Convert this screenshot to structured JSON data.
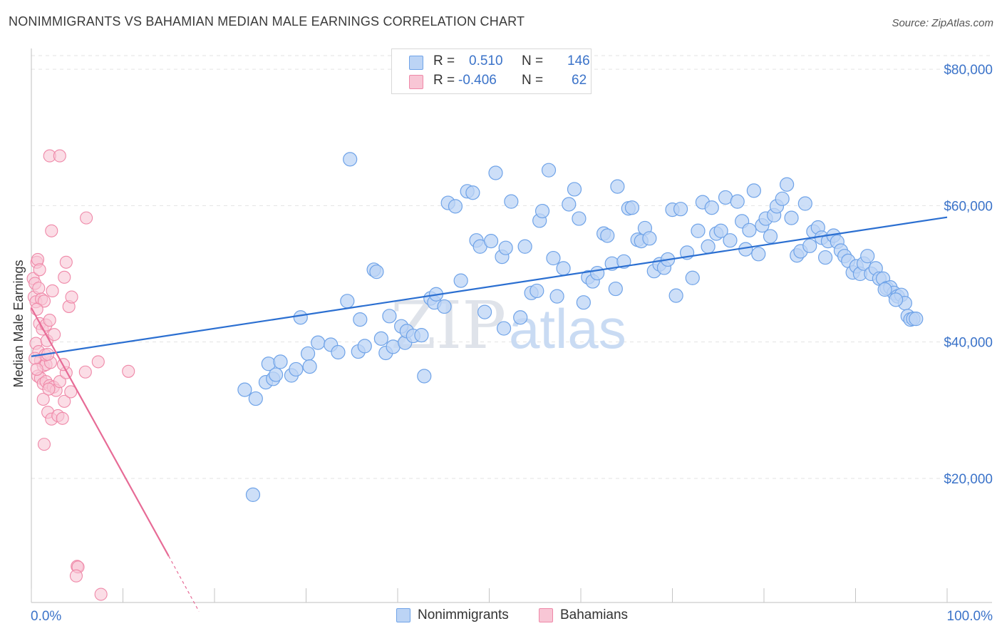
{
  "title": "NONIMMIGRANTS VS BAHAMIAN MEDIAN MALE EARNINGS CORRELATION CHART",
  "source": "Source: ZipAtlas.com",
  "watermark": {
    "zip": "ZIP",
    "atlas": "atlas"
  },
  "colors": {
    "blue": "#6fa3e8",
    "blue_fill": "#bcd4f5",
    "blue_line": "#2b6fd1",
    "pink": "#ef88a8",
    "pink_fill": "#f8c6d5",
    "pink_line": "#e76b96",
    "axis_value": "#3b73c9",
    "grid": "#e3e3e3"
  },
  "legend": {
    "rows": [
      {
        "r_label": "R =",
        "r_value": "0.510",
        "n_label": "N =",
        "n_value": "146"
      },
      {
        "r_label": "R =",
        "r_value": "-0.406",
        "n_label": "N =",
        "n_value": "62"
      }
    ]
  },
  "bottom_legend": {
    "series1": "Nonimmigrants",
    "series2": "Bahamians"
  },
  "chart_data": {
    "type": "scatter",
    "title": "NONIMMIGRANTS VS BAHAMIAN MEDIAN MALE EARNINGS CORRELATION CHART",
    "xlabel": "",
    "ylabel": "Median Male Earnings",
    "x_tick_labels": [
      "0.0%",
      "100.0%"
    ],
    "y_tick_labels": [
      "$20,000",
      "$40,000",
      "$60,000",
      "$80,000"
    ],
    "y_ticks": [
      20000,
      40000,
      60000,
      80000
    ],
    "xlim": [
      0,
      100
    ],
    "ylim": [
      1800,
      82000
    ],
    "grid": true,
    "legend_position": "top-center",
    "series": [
      {
        "name": "Nonimmigrants",
        "color": "#6fa3e8",
        "trend": {
          "x": [
            0,
            100
          ],
          "y": [
            37900,
            58300
          ]
        },
        "points": [
          [
            23.3,
            33000
          ],
          [
            24.2,
            17600
          ],
          [
            24.5,
            31700
          ],
          [
            25.6,
            34100
          ],
          [
            25.9,
            36800
          ],
          [
            26.4,
            34600
          ],
          [
            26.7,
            35200
          ],
          [
            27.2,
            37100
          ],
          [
            28.4,
            35100
          ],
          [
            28.9,
            36000
          ],
          [
            29.4,
            43600
          ],
          [
            30.2,
            38300
          ],
          [
            30.4,
            36400
          ],
          [
            31.3,
            39900
          ],
          [
            32.7,
            39600
          ],
          [
            33.5,
            38500
          ],
          [
            34.5,
            46000
          ],
          [
            34.8,
            66800
          ],
          [
            35.7,
            38600
          ],
          [
            35.9,
            43300
          ],
          [
            36.4,
            39400
          ],
          [
            37.4,
            50600
          ],
          [
            37.7,
            50300
          ],
          [
            38.2,
            40500
          ],
          [
            38.7,
            38400
          ],
          [
            39.1,
            43800
          ],
          [
            39.5,
            39300
          ],
          [
            40.4,
            42300
          ],
          [
            40.8,
            39900
          ],
          [
            41.0,
            41600
          ],
          [
            41.7,
            40900
          ],
          [
            42.6,
            41000
          ],
          [
            42.9,
            35000
          ],
          [
            43.6,
            46400
          ],
          [
            44.0,
            45800
          ],
          [
            44.2,
            47000
          ],
          [
            45.1,
            45200
          ],
          [
            45.5,
            60400
          ],
          [
            46.3,
            59900
          ],
          [
            46.9,
            49000
          ],
          [
            47.6,
            62100
          ],
          [
            48.2,
            61900
          ],
          [
            48.6,
            54900
          ],
          [
            49.0,
            54000
          ],
          [
            49.5,
            44400
          ],
          [
            50.2,
            54800
          ],
          [
            50.7,
            64800
          ],
          [
            51.4,
            52500
          ],
          [
            51.6,
            42000
          ],
          [
            51.8,
            53800
          ],
          [
            52.4,
            60600
          ],
          [
            53.4,
            43600
          ],
          [
            53.9,
            54000
          ],
          [
            54.6,
            47200
          ],
          [
            55.2,
            47500
          ],
          [
            55.5,
            57800
          ],
          [
            55.8,
            59200
          ],
          [
            56.5,
            65200
          ],
          [
            57.0,
            52300
          ],
          [
            57.4,
            46700
          ],
          [
            58.1,
            50800
          ],
          [
            58.7,
            60200
          ],
          [
            59.3,
            62400
          ],
          [
            59.8,
            58100
          ],
          [
            60.3,
            45800
          ],
          [
            60.8,
            49500
          ],
          [
            61.3,
            48900
          ],
          [
            61.8,
            50100
          ],
          [
            62.5,
            55900
          ],
          [
            62.9,
            55600
          ],
          [
            63.4,
            51500
          ],
          [
            63.8,
            47800
          ],
          [
            64.0,
            62800
          ],
          [
            64.7,
            51800
          ],
          [
            65.2,
            59600
          ],
          [
            65.6,
            59700
          ],
          [
            66.2,
            55000
          ],
          [
            66.6,
            54800
          ],
          [
            67.0,
            56700
          ],
          [
            67.5,
            55200
          ],
          [
            68.0,
            50400
          ],
          [
            68.6,
            51400
          ],
          [
            69.1,
            50900
          ],
          [
            69.5,
            52100
          ],
          [
            70.0,
            59400
          ],
          [
            70.4,
            46800
          ],
          [
            70.9,
            59500
          ],
          [
            71.6,
            53100
          ],
          [
            72.2,
            49400
          ],
          [
            72.8,
            56300
          ],
          [
            73.3,
            60500
          ],
          [
            73.9,
            54000
          ],
          [
            74.3,
            59700
          ],
          [
            74.8,
            55900
          ],
          [
            75.3,
            56300
          ],
          [
            75.8,
            61200
          ],
          [
            76.3,
            54900
          ],
          [
            77.1,
            60600
          ],
          [
            77.6,
            57700
          ],
          [
            78.0,
            53600
          ],
          [
            78.4,
            56400
          ],
          [
            78.9,
            62200
          ],
          [
            79.4,
            52900
          ],
          [
            79.8,
            57100
          ],
          [
            80.2,
            58100
          ],
          [
            80.7,
            55500
          ],
          [
            81.1,
            58600
          ],
          [
            81.4,
            59900
          ],
          [
            82.0,
            61000
          ],
          [
            82.5,
            63100
          ],
          [
            83.0,
            58200
          ],
          [
            83.6,
            52700
          ],
          [
            84.0,
            53300
          ],
          [
            84.5,
            60300
          ],
          [
            85.0,
            54100
          ],
          [
            85.4,
            56200
          ],
          [
            85.9,
            56800
          ],
          [
            86.3,
            55300
          ],
          [
            86.7,
            52400
          ],
          [
            87.0,
            54800
          ],
          [
            87.6,
            55600
          ],
          [
            88.0,
            54700
          ],
          [
            88.4,
            53400
          ],
          [
            88.8,
            52600
          ],
          [
            89.2,
            51900
          ],
          [
            89.7,
            50200
          ],
          [
            90.1,
            51100
          ],
          [
            90.5,
            50000
          ],
          [
            90.9,
            51500
          ],
          [
            91.3,
            52600
          ],
          [
            91.7,
            50000
          ],
          [
            92.2,
            50800
          ],
          [
            92.6,
            49300
          ],
          [
            93.0,
            49300
          ],
          [
            93.4,
            47900
          ],
          [
            93.8,
            48000
          ],
          [
            94.2,
            47200
          ],
          [
            94.6,
            46700
          ],
          [
            95.0,
            46900
          ],
          [
            95.4,
            45700
          ],
          [
            95.7,
            43800
          ],
          [
            96.0,
            43300
          ],
          [
            96.3,
            43400
          ],
          [
            96.6,
            43400
          ],
          [
            93.2,
            47700
          ],
          [
            94.4,
            46200
          ]
        ]
      },
      {
        "name": "Bahamians",
        "color": "#ef88a8",
        "trend": {
          "x": [
            0,
            15.0
          ],
          "y": [
            45000,
            8600
          ]
        },
        "trend_dashed": {
          "x": [
            15.0,
            18.3
          ],
          "y": [
            8600,
            500
          ]
        },
        "points": [
          [
            0.2,
            49300
          ],
          [
            0.4,
            48600
          ],
          [
            0.6,
            51700
          ],
          [
            0.7,
            52100
          ],
          [
            0.9,
            50600
          ],
          [
            0.3,
            46600
          ],
          [
            0.5,
            45900
          ],
          [
            0.8,
            47900
          ],
          [
            1.1,
            46300
          ],
          [
            1.4,
            46000
          ],
          [
            0.6,
            44800
          ],
          [
            0.9,
            42700
          ],
          [
            1.2,
            41900
          ],
          [
            1.6,
            42500
          ],
          [
            2.0,
            43200
          ],
          [
            0.5,
            39800
          ],
          [
            0.8,
            38600
          ],
          [
            1.0,
            37300
          ],
          [
            1.3,
            36500
          ],
          [
            1.6,
            36700
          ],
          [
            2.1,
            37000
          ],
          [
            0.7,
            35000
          ],
          [
            1.0,
            34700
          ],
          [
            1.3,
            33900
          ],
          [
            1.6,
            34200
          ],
          [
            2.0,
            33600
          ],
          [
            2.4,
            33400
          ],
          [
            2.7,
            32900
          ],
          [
            1.3,
            31600
          ],
          [
            1.8,
            29700
          ],
          [
            2.2,
            28700
          ],
          [
            2.9,
            29200
          ],
          [
            3.1,
            34200
          ],
          [
            3.8,
            35500
          ],
          [
            3.6,
            31300
          ],
          [
            3.4,
            28800
          ],
          [
            4.3,
            32700
          ],
          [
            3.5,
            36700
          ],
          [
            4.1,
            45200
          ],
          [
            4.4,
            46600
          ],
          [
            3.6,
            49500
          ],
          [
            3.8,
            51700
          ],
          [
            2.2,
            56300
          ],
          [
            2.0,
            67300
          ],
          [
            3.1,
            67300
          ],
          [
            6.0,
            58200
          ],
          [
            5.9,
            35600
          ],
          [
            7.3,
            37100
          ],
          [
            10.6,
            35700
          ],
          [
            5.0,
            7100
          ],
          [
            5.1,
            7000
          ],
          [
            4.9,
            5700
          ],
          [
            7.6,
            3000
          ],
          [
            1.5,
            38100
          ],
          [
            1.8,
            38200
          ],
          [
            1.7,
            40200
          ],
          [
            2.5,
            41100
          ],
          [
            2.3,
            47500
          ],
          [
            0.4,
            37600
          ],
          [
            0.6,
            36000
          ],
          [
            1.9,
            33100
          ],
          [
            1.4,
            25000
          ]
        ]
      }
    ]
  }
}
